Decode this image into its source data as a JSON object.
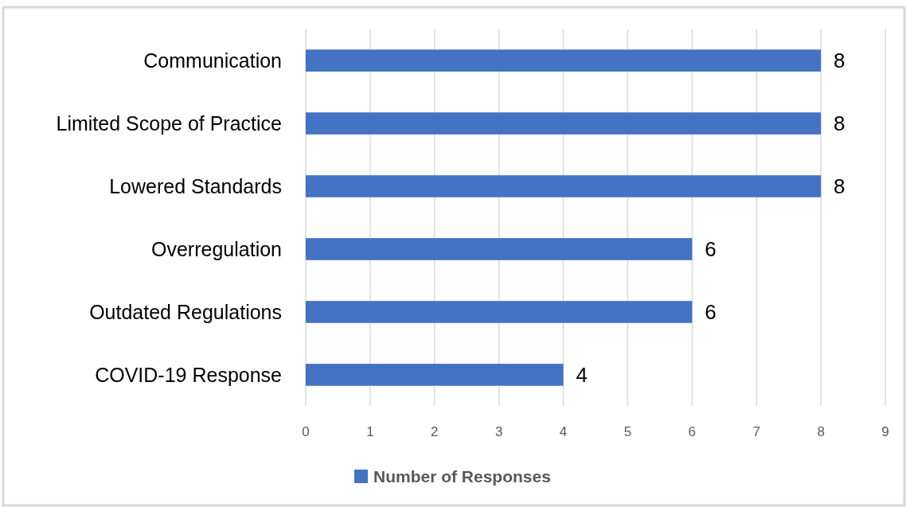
{
  "chart_data": {
    "type": "bar",
    "orientation": "horizontal",
    "categories": [
      "Communication",
      "Limited Scope of Practice",
      "Lowered Standards",
      "Overregulation",
      "Outdated Regulations",
      "COVID-19 Response"
    ],
    "series": [
      {
        "name": "Number of Responses",
        "color": "#4472c4",
        "values": [
          8,
          8,
          8,
          6,
          6,
          4
        ]
      }
    ],
    "xlim": [
      0,
      9
    ],
    "xticks": [
      0,
      1,
      2,
      3,
      4,
      5,
      6,
      7,
      8,
      9
    ],
    "grid": "x",
    "legend": "bottom",
    "data_labels": true
  }
}
